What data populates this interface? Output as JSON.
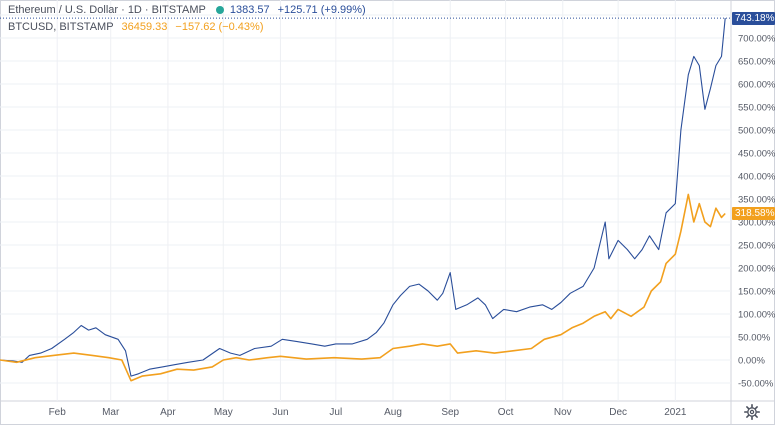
{
  "legend": {
    "eth": {
      "title": "Ethereum / U.S. Dollar · 1D · BITSTAMP",
      "price": "1383.57",
      "change": "+125.71 (+9.99%)"
    },
    "btc": {
      "title": "BTCUSD, BITSTAMP",
      "price": "36459.33",
      "change": "−157.62 (−0.43%)"
    }
  },
  "price_tags": {
    "eth": "743.18%",
    "btc": "318.58%"
  },
  "settings_icon": "gear-icon",
  "colors": {
    "eth": "#2a4e9a",
    "btc": "#f2a01e",
    "grid": "#eef0f4",
    "axis_text": "#555a66"
  },
  "chart_data": {
    "type": "line",
    "title": "",
    "xlabel": "",
    "ylabel": "",
    "y_unit": "%",
    "y_scale": "percent-change",
    "ylim": [
      -70,
      760
    ],
    "y_ticks": [
      "750.00%",
      "700.00%",
      "650.00%",
      "600.00%",
      "550.00%",
      "500.00%",
      "450.00%",
      "400.00%",
      "350.00%",
      "300.00%",
      "250.00%",
      "200.00%",
      "150.00%",
      "100.00%",
      "50.00%",
      "0.00%",
      "-50.00%"
    ],
    "y_tick_values": [
      750,
      700,
      650,
      600,
      550,
      500,
      450,
      400,
      350,
      300,
      250,
      200,
      150,
      100,
      50,
      0,
      -50
    ],
    "x_ticks": [
      "Feb",
      "Mar",
      "Apr",
      "May",
      "Jun",
      "Jul",
      "Aug",
      "Sep",
      "Oct",
      "Nov",
      "Dec",
      "2021"
    ],
    "x_tick_dates": [
      "2020-02-01",
      "2020-03-01",
      "2020-04-01",
      "2020-05-01",
      "2020-06-01",
      "2020-07-01",
      "2020-08-01",
      "2020-09-01",
      "2020-10-01",
      "2020-11-01",
      "2020-12-01",
      "2021-01-01"
    ],
    "xlim": [
      "2020-01-01",
      "2021-01-29"
    ],
    "grid": true,
    "series": [
      {
        "name": "Ethereum / U.S. Dollar",
        "color": "#2a4e9a",
        "points": [
          [
            "2020-01-01",
            0
          ],
          [
            "2020-01-08",
            -2
          ],
          [
            "2020-01-13",
            -5
          ],
          [
            "2020-01-17",
            10
          ],
          [
            "2020-01-23",
            15
          ],
          [
            "2020-01-29",
            25
          ],
          [
            "2020-02-05",
            45
          ],
          [
            "2020-02-10",
            60
          ],
          [
            "2020-02-14",
            75
          ],
          [
            "2020-02-18",
            65
          ],
          [
            "2020-02-22",
            70
          ],
          [
            "2020-02-27",
            55
          ],
          [
            "2020-03-05",
            45
          ],
          [
            "2020-03-09",
            20
          ],
          [
            "2020-03-12",
            -35
          ],
          [
            "2020-03-16",
            -30
          ],
          [
            "2020-03-22",
            -20
          ],
          [
            "2020-03-29",
            -15
          ],
          [
            "2020-04-05",
            -10
          ],
          [
            "2020-04-12",
            -5
          ],
          [
            "2020-04-20",
            0
          ],
          [
            "2020-04-29",
            25
          ],
          [
            "2020-05-05",
            15
          ],
          [
            "2020-05-10",
            10
          ],
          [
            "2020-05-18",
            25
          ],
          [
            "2020-05-27",
            30
          ],
          [
            "2020-06-02",
            45
          ],
          [
            "2020-06-10",
            40
          ],
          [
            "2020-06-18",
            35
          ],
          [
            "2020-06-25",
            30
          ],
          [
            "2020-07-01",
            35
          ],
          [
            "2020-07-10",
            35
          ],
          [
            "2020-07-18",
            45
          ],
          [
            "2020-07-23",
            60
          ],
          [
            "2020-07-27",
            80
          ],
          [
            "2020-08-01",
            120
          ],
          [
            "2020-08-05",
            140
          ],
          [
            "2020-08-10",
            160
          ],
          [
            "2020-08-15",
            165
          ],
          [
            "2020-08-20",
            150
          ],
          [
            "2020-08-25",
            130
          ],
          [
            "2020-08-28",
            145
          ],
          [
            "2020-09-01",
            190
          ],
          [
            "2020-09-04",
            110
          ],
          [
            "2020-09-10",
            120
          ],
          [
            "2020-09-16",
            135
          ],
          [
            "2020-09-20",
            120
          ],
          [
            "2020-09-24",
            90
          ],
          [
            "2020-09-30",
            110
          ],
          [
            "2020-10-07",
            105
          ],
          [
            "2020-10-14",
            115
          ],
          [
            "2020-10-21",
            120
          ],
          [
            "2020-10-26",
            110
          ],
          [
            "2020-10-31",
            125
          ],
          [
            "2020-11-05",
            145
          ],
          [
            "2020-11-12",
            160
          ],
          [
            "2020-11-18",
            200
          ],
          [
            "2020-11-24,",
            300
          ],
          [
            "2020-11-26",
            220
          ],
          [
            "2020-12-01",
            260
          ],
          [
            "2020-12-06",
            240
          ],
          [
            "2020-12-10",
            220
          ],
          [
            "2020-12-14",
            240
          ],
          [
            "2020-12-18",
            270
          ],
          [
            "2020-12-23",
            240
          ],
          [
            "2020-12-27",
            320
          ],
          [
            "2021-01-01",
            340
          ],
          [
            "2021-01-04",
            500
          ],
          [
            "2021-01-08",
            620
          ],
          [
            "2021-01-11",
            660
          ],
          [
            "2021-01-14",
            640
          ],
          [
            "2021-01-17",
            545
          ],
          [
            "2021-01-20",
            590
          ],
          [
            "2021-01-23",
            640
          ],
          [
            "2021-01-26",
            660
          ],
          [
            "2021-01-28",
            743.18
          ]
        ]
      },
      {
        "name": "BTCUSD",
        "color": "#f2a01e",
        "points": [
          [
            "2020-01-01",
            0
          ],
          [
            "2020-01-10",
            -5
          ],
          [
            "2020-01-20",
            5
          ],
          [
            "2020-01-30",
            10
          ],
          [
            "2020-02-10",
            15
          ],
          [
            "2020-02-20",
            10
          ],
          [
            "2020-02-29",
            5
          ],
          [
            "2020-03-07",
            0
          ],
          [
            "2020-03-12",
            -45
          ],
          [
            "2020-03-18",
            -35
          ],
          [
            "2020-03-28",
            -30
          ],
          [
            "2020-04-06",
            -20
          ],
          [
            "2020-04-15",
            -22
          ],
          [
            "2020-04-25",
            -15
          ],
          [
            "2020-05-01",
            0
          ],
          [
            "2020-05-08",
            5
          ],
          [
            "2020-05-15",
            0
          ],
          [
            "2020-05-25",
            5
          ],
          [
            "2020-06-01",
            8
          ],
          [
            "2020-06-15",
            2
          ],
          [
            "2020-06-30",
            5
          ],
          [
            "2020-07-15",
            2
          ],
          [
            "2020-07-25",
            5
          ],
          [
            "2020-08-01",
            25
          ],
          [
            "2020-08-10",
            30
          ],
          [
            "2020-08-17",
            35
          ],
          [
            "2020-08-25",
            30
          ],
          [
            "2020-09-01",
            35
          ],
          [
            "2020-09-05",
            15
          ],
          [
            "2020-09-15",
            20
          ],
          [
            "2020-09-25",
            15
          ],
          [
            "2020-10-05",
            20
          ],
          [
            "2020-10-15",
            25
          ],
          [
            "2020-10-22",
            45
          ],
          [
            "2020-10-31",
            55
          ],
          [
            "2020-11-06",
            70
          ],
          [
            "2020-11-12",
            80
          ],
          [
            "2020-11-18",
            95
          ],
          [
            "2020-11-24",
            105
          ],
          [
            "2020-11-27",
            90
          ],
          [
            "2020-12-01",
            110
          ],
          [
            "2020-12-08",
            95
          ],
          [
            "2020-12-15",
            115
          ],
          [
            "2020-12-19",
            150
          ],
          [
            "2020-12-24",
            170
          ],
          [
            "2020-12-27",
            210
          ],
          [
            "2021-01-01",
            230
          ],
          [
            "2021-01-04",
            280
          ],
          [
            "2021-01-08",
            360
          ],
          [
            "2021-01-11",
            300
          ],
          [
            "2021-01-14",
            340
          ],
          [
            "2021-01-17",
            300
          ],
          [
            "2021-01-20",
            290
          ],
          [
            "2021-01-23",
            330
          ],
          [
            "2021-01-26",
            310
          ],
          [
            "2021-01-28",
            318.58
          ]
        ]
      }
    ]
  }
}
